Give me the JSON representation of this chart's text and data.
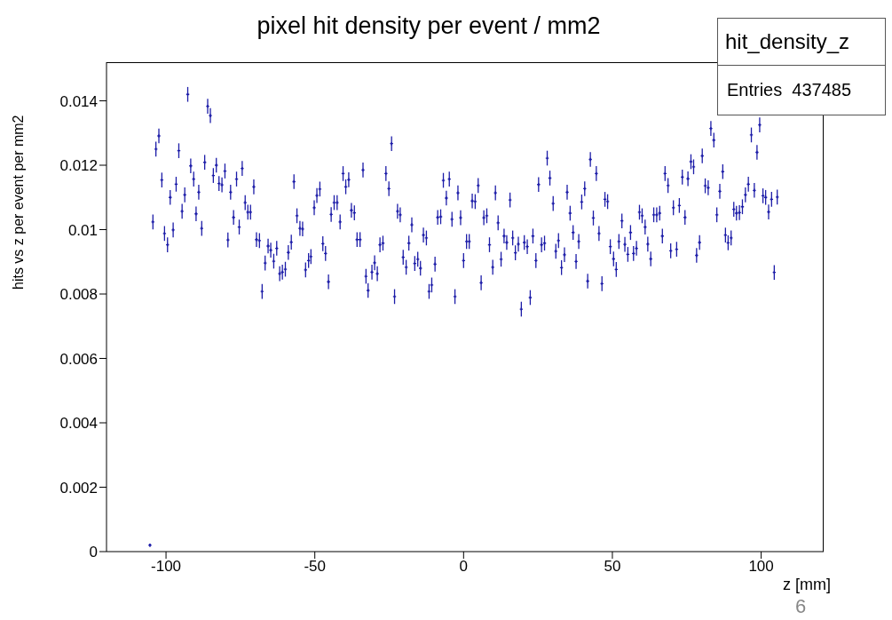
{
  "chart_data": {
    "type": "scatter",
    "title": "pixel hit density per event / mm2",
    "xlabel": "z [mm]",
    "ylabel": "hits vs z per event per mm2",
    "annotations": [
      "hit_density_z",
      "Entries  437485",
      "6"
    ],
    "color": "#1c1ca8",
    "marker": "cross",
    "xlim": [
      -120,
      121
    ],
    "xticks": [
      -100,
      -50,
      0,
      50,
      100
    ],
    "ylim": [
      0,
      0.0152
    ],
    "yticks": [
      0,
      0.002,
      0.004,
      0.006,
      0.008,
      0.01,
      0.012,
      0.014
    ],
    "x": [
      -105.4,
      -104.4,
      -103.4,
      -102.4,
      -101.4,
      -100.5,
      -99.5,
      -98.6,
      -97.6,
      -96.6,
      -95.7,
      -94.6,
      -93.7,
      -92.7,
      -91.7,
      -90.7,
      -89.9,
      -89.0,
      -88.0,
      -87.0,
      -86.0,
      -85.1,
      -84.1,
      -83.1,
      -82.2,
      -81.2,
      -80.2,
      -79.2,
      -78.3,
      -77.3,
      -76.3,
      -75.4,
      -74.4,
      -73.4,
      -72.5,
      -71.6,
      -70.5,
      -69.6,
      -68.6,
      -67.7,
      -66.7,
      -65.7,
      -64.8,
      -63.8,
      -62.8,
      -61.8,
      -60.9,
      -59.9,
      -58.9,
      -57.9,
      -57.0,
      -56.0,
      -55.0,
      -54.1,
      -53.1,
      -52.1,
      -51.3,
      -50.2,
      -49.3,
      -48.3,
      -47.3,
      -46.4,
      -45.4,
      -44.5,
      -43.5,
      -42.5,
      -41.5,
      -40.5,
      -39.6,
      -38.6,
      -37.7,
      -36.7,
      -35.8,
      -34.8,
      -33.8,
      -32.8,
      -32.1,
      -30.8,
      -29.9,
      -29.0,
      -28.1,
      -27.1,
      -26.1,
      -25.1,
      -24.2,
      -23.2,
      -22.2,
      -21.3,
      -20.3,
      -19.3,
      -18.4,
      -17.4,
      -16.4,
      -15.4,
      -14.5,
      -13.5,
      -12.5,
      -11.6,
      -10.7,
      -9.6,
      -8.7,
      -7.7,
      -6.8,
      -5.8,
      -4.8,
      -3.9,
      -2.9,
      -1.9,
      -1.0,
      0.0,
      1.0,
      1.9,
      2.9,
      3.9,
      4.9,
      5.9,
      6.8,
      7.8,
      8.7,
      9.8,
      10.7,
      11.6,
      12.6,
      13.6,
      14.5,
      15.6,
      16.5,
      17.4,
      18.4,
      19.4,
      20.4,
      21.4,
      22.4,
      23.3,
      24.3,
      25.2,
      26.2,
      27.2,
      28.1,
      29.0,
      30.1,
      31.0,
      31.9,
      32.9,
      33.9,
      34.8,
      35.8,
      36.8,
      37.8,
      38.7,
      39.7,
      40.7,
      41.7,
      42.6,
      43.6,
      44.6,
      45.5,
      46.5,
      47.5,
      48.4,
      49.3,
      50.4,
      51.3,
      52.2,
      53.2,
      54.2,
      55.2,
      56.1,
      57.1,
      58.1,
      59.1,
      60.0,
      61.0,
      61.9,
      62.9,
      63.9,
      64.9,
      65.9,
      66.8,
      67.7,
      68.7,
      69.6,
      70.5,
      71.6,
      72.5,
      73.5,
      74.4,
      75.4,
      76.4,
      77.3,
      78.3,
      79.3,
      80.2,
      81.2,
      82.2,
      83.1,
      84.1,
      85.1,
      86.1,
      87.1,
      88.0,
      88.9,
      89.9,
      90.8,
      91.7,
      92.7,
      93.7,
      94.7,
      95.7,
      96.7,
      97.7,
      98.6,
      99.5,
      100.6,
      101.5,
      102.5,
      103.5,
      104.4,
      105.4
    ],
    "values": [
      0.0002,
      0.01024,
      0.0125,
      0.01291,
      0.01154,
      0.00988,
      0.00953,
      0.011,
      0.00999,
      0.01141,
      0.01245,
      0.01057,
      0.01108,
      0.0142,
      0.01198,
      0.01157,
      0.01049,
      0.01116,
      0.01004,
      0.01209,
      0.01383,
      0.01354,
      0.01168,
      0.012,
      0.01143,
      0.01139,
      0.01182,
      0.00968,
      0.01116,
      0.01038,
      0.01157,
      0.01008,
      0.0119,
      0.01084,
      0.01054,
      0.01054,
      0.01133,
      0.00969,
      0.00966,
      0.00808,
      0.00896,
      0.00949,
      0.00936,
      0.00902,
      0.00942,
      0.00863,
      0.00868,
      0.00877,
      0.00929,
      0.00961,
      0.01149,
      0.01043,
      0.01004,
      0.01002,
      0.00875,
      0.00904,
      0.00916,
      0.01068,
      0.01106,
      0.01126,
      0.00956,
      0.00926,
      0.00838,
      0.01047,
      0.01084,
      0.01084,
      0.01024,
      0.01174,
      0.01133,
      0.01155,
      0.0106,
      0.01052,
      0.00969,
      0.00969,
      0.01185,
      0.00855,
      0.00811,
      0.00868,
      0.00897,
      0.00863,
      0.00953,
      0.00958,
      0.01174,
      0.01127,
      0.01267,
      0.00792,
      0.01057,
      0.01046,
      0.00914,
      0.00883,
      0.00958,
      0.01015,
      0.00895,
      0.00908,
      0.0088,
      0.00983,
      0.00974,
      0.00808,
      0.00828,
      0.00893,
      0.01038,
      0.0104,
      0.01153,
      0.01098,
      0.01157,
      0.01032,
      0.00792,
      0.01114,
      0.01037,
      0.00904,
      0.00963,
      0.00963,
      0.01089,
      0.01087,
      0.01137,
      0.00835,
      0.01037,
      0.01043,
      0.00953,
      0.00883,
      0.01114,
      0.01021,
      0.00908,
      0.0098,
      0.0096,
      0.01092,
      0.00974,
      0.00928,
      0.00955,
      0.00753,
      0.0096,
      0.00947,
      0.00789,
      0.0098,
      0.00904,
      0.0114,
      0.00953,
      0.00958,
      0.01222,
      0.0116,
      0.01081,
      0.00933,
      0.00966,
      0.00882,
      0.00922,
      0.01116,
      0.01051,
      0.00991,
      0.00901,
      0.00963,
      0.01086,
      0.01127,
      0.0084,
      0.01218,
      0.01036,
      0.01174,
      0.00988,
      0.00832,
      0.01094,
      0.01087,
      0.00947,
      0.00909,
      0.00876,
      0.00963,
      0.01027,
      0.00954,
      0.00923,
      0.00991,
      0.00926,
      0.00942,
      0.01054,
      0.01043,
      0.01008,
      0.00955,
      0.00909,
      0.01046,
      0.01046,
      0.01051,
      0.0098,
      0.01174,
      0.01137,
      0.00934,
      0.01068,
      0.00939,
      0.01075,
      0.01163,
      0.01038,
      0.01158,
      0.01211,
      0.01195,
      0.0092,
      0.0096,
      0.01229,
      0.01136,
      0.0113,
      0.01314,
      0.01278,
      0.01046,
      0.01119,
      0.0118,
      0.00983,
      0.00959,
      0.00974,
      0.01063,
      0.01051,
      0.01053,
      0.01071,
      0.01108,
      0.01141,
      0.01294,
      0.01122,
      0.0124,
      0.01325,
      0.01105,
      0.011,
      0.01055,
      0.01094,
      0.00867,
      0.01101
    ],
    "errors": [
      5e-05,
      0.00023,
      0.00023,
      0.00023,
      0.00023,
      0.00023,
      0.00023,
      0.00023,
      0.00023,
      0.00023,
      0.00023,
      0.00023,
      0.00023,
      0.00023,
      0.00023,
      0.00023,
      0.00023,
      0.00023,
      0.00023,
      0.00023,
      0.00023,
      0.00023,
      0.00023,
      0.00023,
      0.00023,
      0.00023,
      0.00023,
      0.00023,
      0.00023,
      0.00023,
      0.00023,
      0.00023,
      0.00023,
      0.00023,
      0.00023,
      0.00023,
      0.00023,
      0.00023,
      0.00023,
      0.00023,
      0.00023,
      0.00023,
      0.00023,
      0.00023,
      0.00023,
      0.00023,
      0.00023,
      0.00023,
      0.00023,
      0.00023,
      0.00023,
      0.00023,
      0.00023,
      0.00023,
      0.00023,
      0.00023,
      0.00023,
      0.00023,
      0.00023,
      0.00023,
      0.00023,
      0.00023,
      0.00023,
      0.00023,
      0.00023,
      0.00023,
      0.00023,
      0.00023,
      0.00023,
      0.00023,
      0.00023,
      0.00023,
      0.00023,
      0.00023,
      0.00023,
      0.00023,
      0.00023,
      0.00023,
      0.00023,
      0.00023,
      0.00023,
      0.00023,
      0.00023,
      0.00023,
      0.00023,
      0.00023,
      0.00023,
      0.00023,
      0.00023,
      0.00023,
      0.00023,
      0.00023,
      0.00023,
      0.00023,
      0.00023,
      0.00023,
      0.00023,
      0.00023,
      0.00023,
      0.00023,
      0.00023,
      0.00023,
      0.00023,
      0.00023,
      0.00023,
      0.00023,
      0.00023,
      0.00023,
      0.00023,
      0.00023,
      0.00023,
      0.00023,
      0.00023,
      0.00023,
      0.00023,
      0.00023,
      0.00023,
      0.00023,
      0.00023,
      0.00023,
      0.00023,
      0.00023,
      0.00023,
      0.00023,
      0.00023,
      0.00023,
      0.00023,
      0.00023,
      0.00023,
      0.00023,
      0.00023,
      0.00023,
      0.00023,
      0.00023,
      0.00023,
      0.00023,
      0.00023,
      0.00023,
      0.00023,
      0.00023,
      0.00023,
      0.00023,
      0.00023,
      0.00023,
      0.00023,
      0.00023,
      0.00023,
      0.00023,
      0.00023,
      0.00023,
      0.00023,
      0.00023,
      0.00023,
      0.00023,
      0.00023,
      0.00023,
      0.00023,
      0.00023,
      0.00023,
      0.00023,
      0.00023,
      0.00023,
      0.00023,
      0.00023,
      0.00023,
      0.00023,
      0.00023,
      0.00023,
      0.00023,
      0.00023,
      0.00023,
      0.00023,
      0.00023,
      0.00023,
      0.00023,
      0.00023,
      0.00023,
      0.00023,
      0.00023,
      0.00023,
      0.00023,
      0.00023,
      0.00023,
      0.00023,
      0.00023,
      0.00023,
      0.00023,
      0.00023,
      0.00023,
      0.00023,
      0.00023,
      0.00023,
      0.00023,
      0.00023,
      0.00023,
      0.00023,
      0.00023,
      0.00023,
      0.00023,
      0.00023,
      0.00023,
      0.00023,
      0.00023,
      0.00023,
      0.00023,
      0.00023,
      0.00023,
      0.00023,
      0.00023,
      0.00023,
      0.00023,
      0.00023,
      0.00023,
      0.00023,
      0.00023,
      0.00023,
      0.00023,
      0.00023,
      0.00023
    ]
  }
}
